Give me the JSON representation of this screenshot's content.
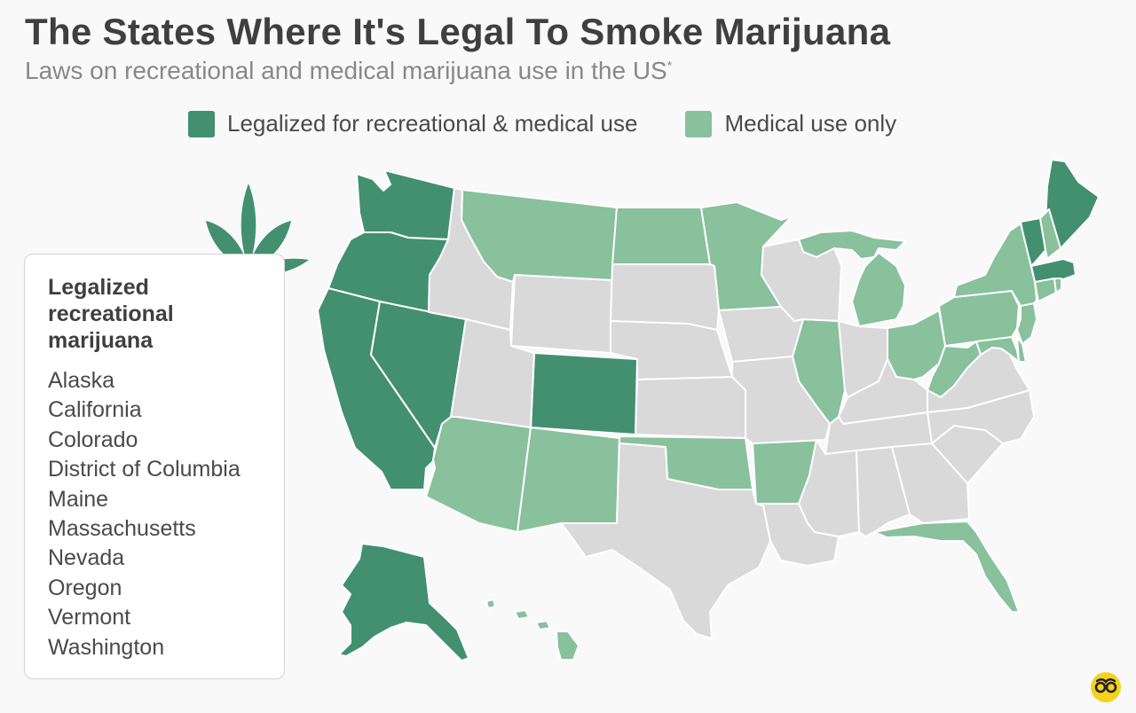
{
  "header": {
    "title": "The States Where It's Legal To Smoke Marijuana",
    "subtitle": "Laws on recreational and medical marijuana use in the US",
    "subtitle_mark": "*"
  },
  "legend": [
    {
      "label": "Legalized for recreational & medical use",
      "color": "#42906f"
    },
    {
      "label": "Medical use only",
      "color": "#88c19c"
    }
  ],
  "colors": {
    "recreational": "#42906f",
    "medical": "#88c19c",
    "none": "#d9d9d9",
    "border": "#ffffff"
  },
  "panel": {
    "heading": "Legalized recreational marijuana",
    "states": [
      "Alaska",
      "California",
      "Colorado",
      "District of Columbia",
      "Maine",
      "Massachusetts",
      "Nevada",
      "Oregon",
      "Vermont",
      "Washington"
    ]
  },
  "map_status": {
    "recreational": [
      "WA",
      "OR",
      "CA",
      "NV",
      "CO",
      "AK",
      "ME",
      "VT",
      "MA",
      "DC"
    ],
    "medical": [
      "MT",
      "ND",
      "MN",
      "AZ",
      "NM",
      "OK",
      "AR",
      "IL",
      "MI",
      "OH",
      "WV",
      "PA",
      "NY",
      "NH",
      "CT",
      "RI",
      "NJ",
      "DE",
      "MD",
      "FL",
      "HI"
    ],
    "none": [
      "ID",
      "WY",
      "UT",
      "SD",
      "NE",
      "KS",
      "TX",
      "IA",
      "MO",
      "LA",
      "WI",
      "IN",
      "KY",
      "TN",
      "MS",
      "AL",
      "GA",
      "SC",
      "NC",
      "VA"
    ]
  },
  "icons": {
    "leaf": "cannabis-leaf-icon",
    "logo": "statista-logo-icon"
  }
}
